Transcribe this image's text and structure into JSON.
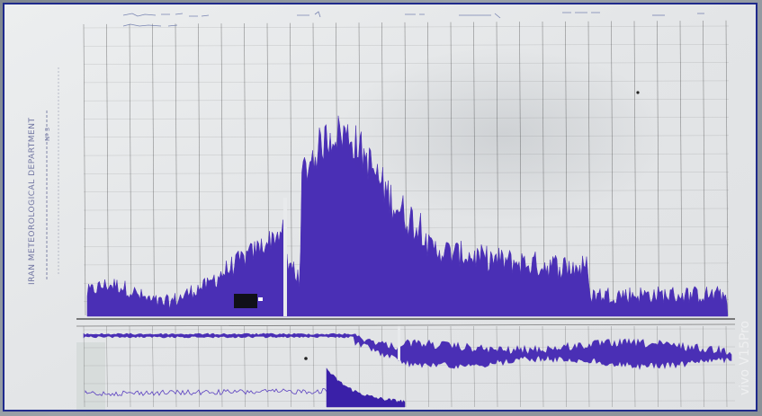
{
  "paper": {
    "department": "IRAN METEOROLOGICAL DEPARTMENT",
    "sheet_number": "Nº 3",
    "watermark": "vivo V15Pro"
  },
  "colors": {
    "ink": "#4a2fb5",
    "grid": "#3a3a3a",
    "paper": "#e6e8ea",
    "frame": "#1f2a8c"
  }
}
